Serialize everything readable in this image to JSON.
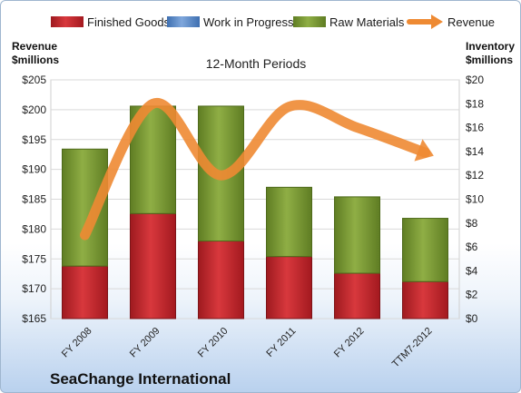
{
  "chart_data": {
    "type": "bar",
    "title": "12-Month Periods",
    "footer": "SeaChange International",
    "categories": [
      "FY 2008",
      "FY 2009",
      "FY 2010",
      "FY 2011",
      "FY 2012",
      "TTM7-2012"
    ],
    "stacked": true,
    "series": [
      {
        "name": "Finished Goods",
        "axis": "right",
        "color": "#c0282d",
        "values": [
          4.4,
          8.8,
          6.5,
          5.2,
          3.8,
          3.1
        ]
      },
      {
        "name": "Work in Progress",
        "axis": "right",
        "color": "#5b8fd0",
        "values": [
          0,
          0,
          0,
          0,
          0,
          0
        ]
      },
      {
        "name": "Raw Materials",
        "axis": "right",
        "color": "#7a9a2d",
        "values": [
          9.8,
          9.0,
          11.3,
          5.8,
          6.4,
          5.3
        ]
      },
      {
        "name": "Revenue",
        "axis": "left",
        "type": "line",
        "color": "#ee8a33",
        "values": [
          179.0,
          201.0,
          189.0,
          200.5,
          197.0,
          192.8
        ]
      }
    ],
    "ylabel_left": "Revenue\n$millions",
    "ylabel_right": "Inventory\n$millions",
    "ylim_left": [
      165,
      205
    ],
    "ylim_right": [
      0,
      20
    ],
    "yticks_left": [
      "$165",
      "$170",
      "$175",
      "$180",
      "$185",
      "$190",
      "$195",
      "$200",
      "$205"
    ],
    "yticks_right": [
      "$0",
      "$2",
      "$4",
      "$6",
      "$8",
      "$10",
      "$12",
      "$14",
      "$16",
      "$18",
      "$20"
    ],
    "grid": true,
    "legend": "top"
  }
}
